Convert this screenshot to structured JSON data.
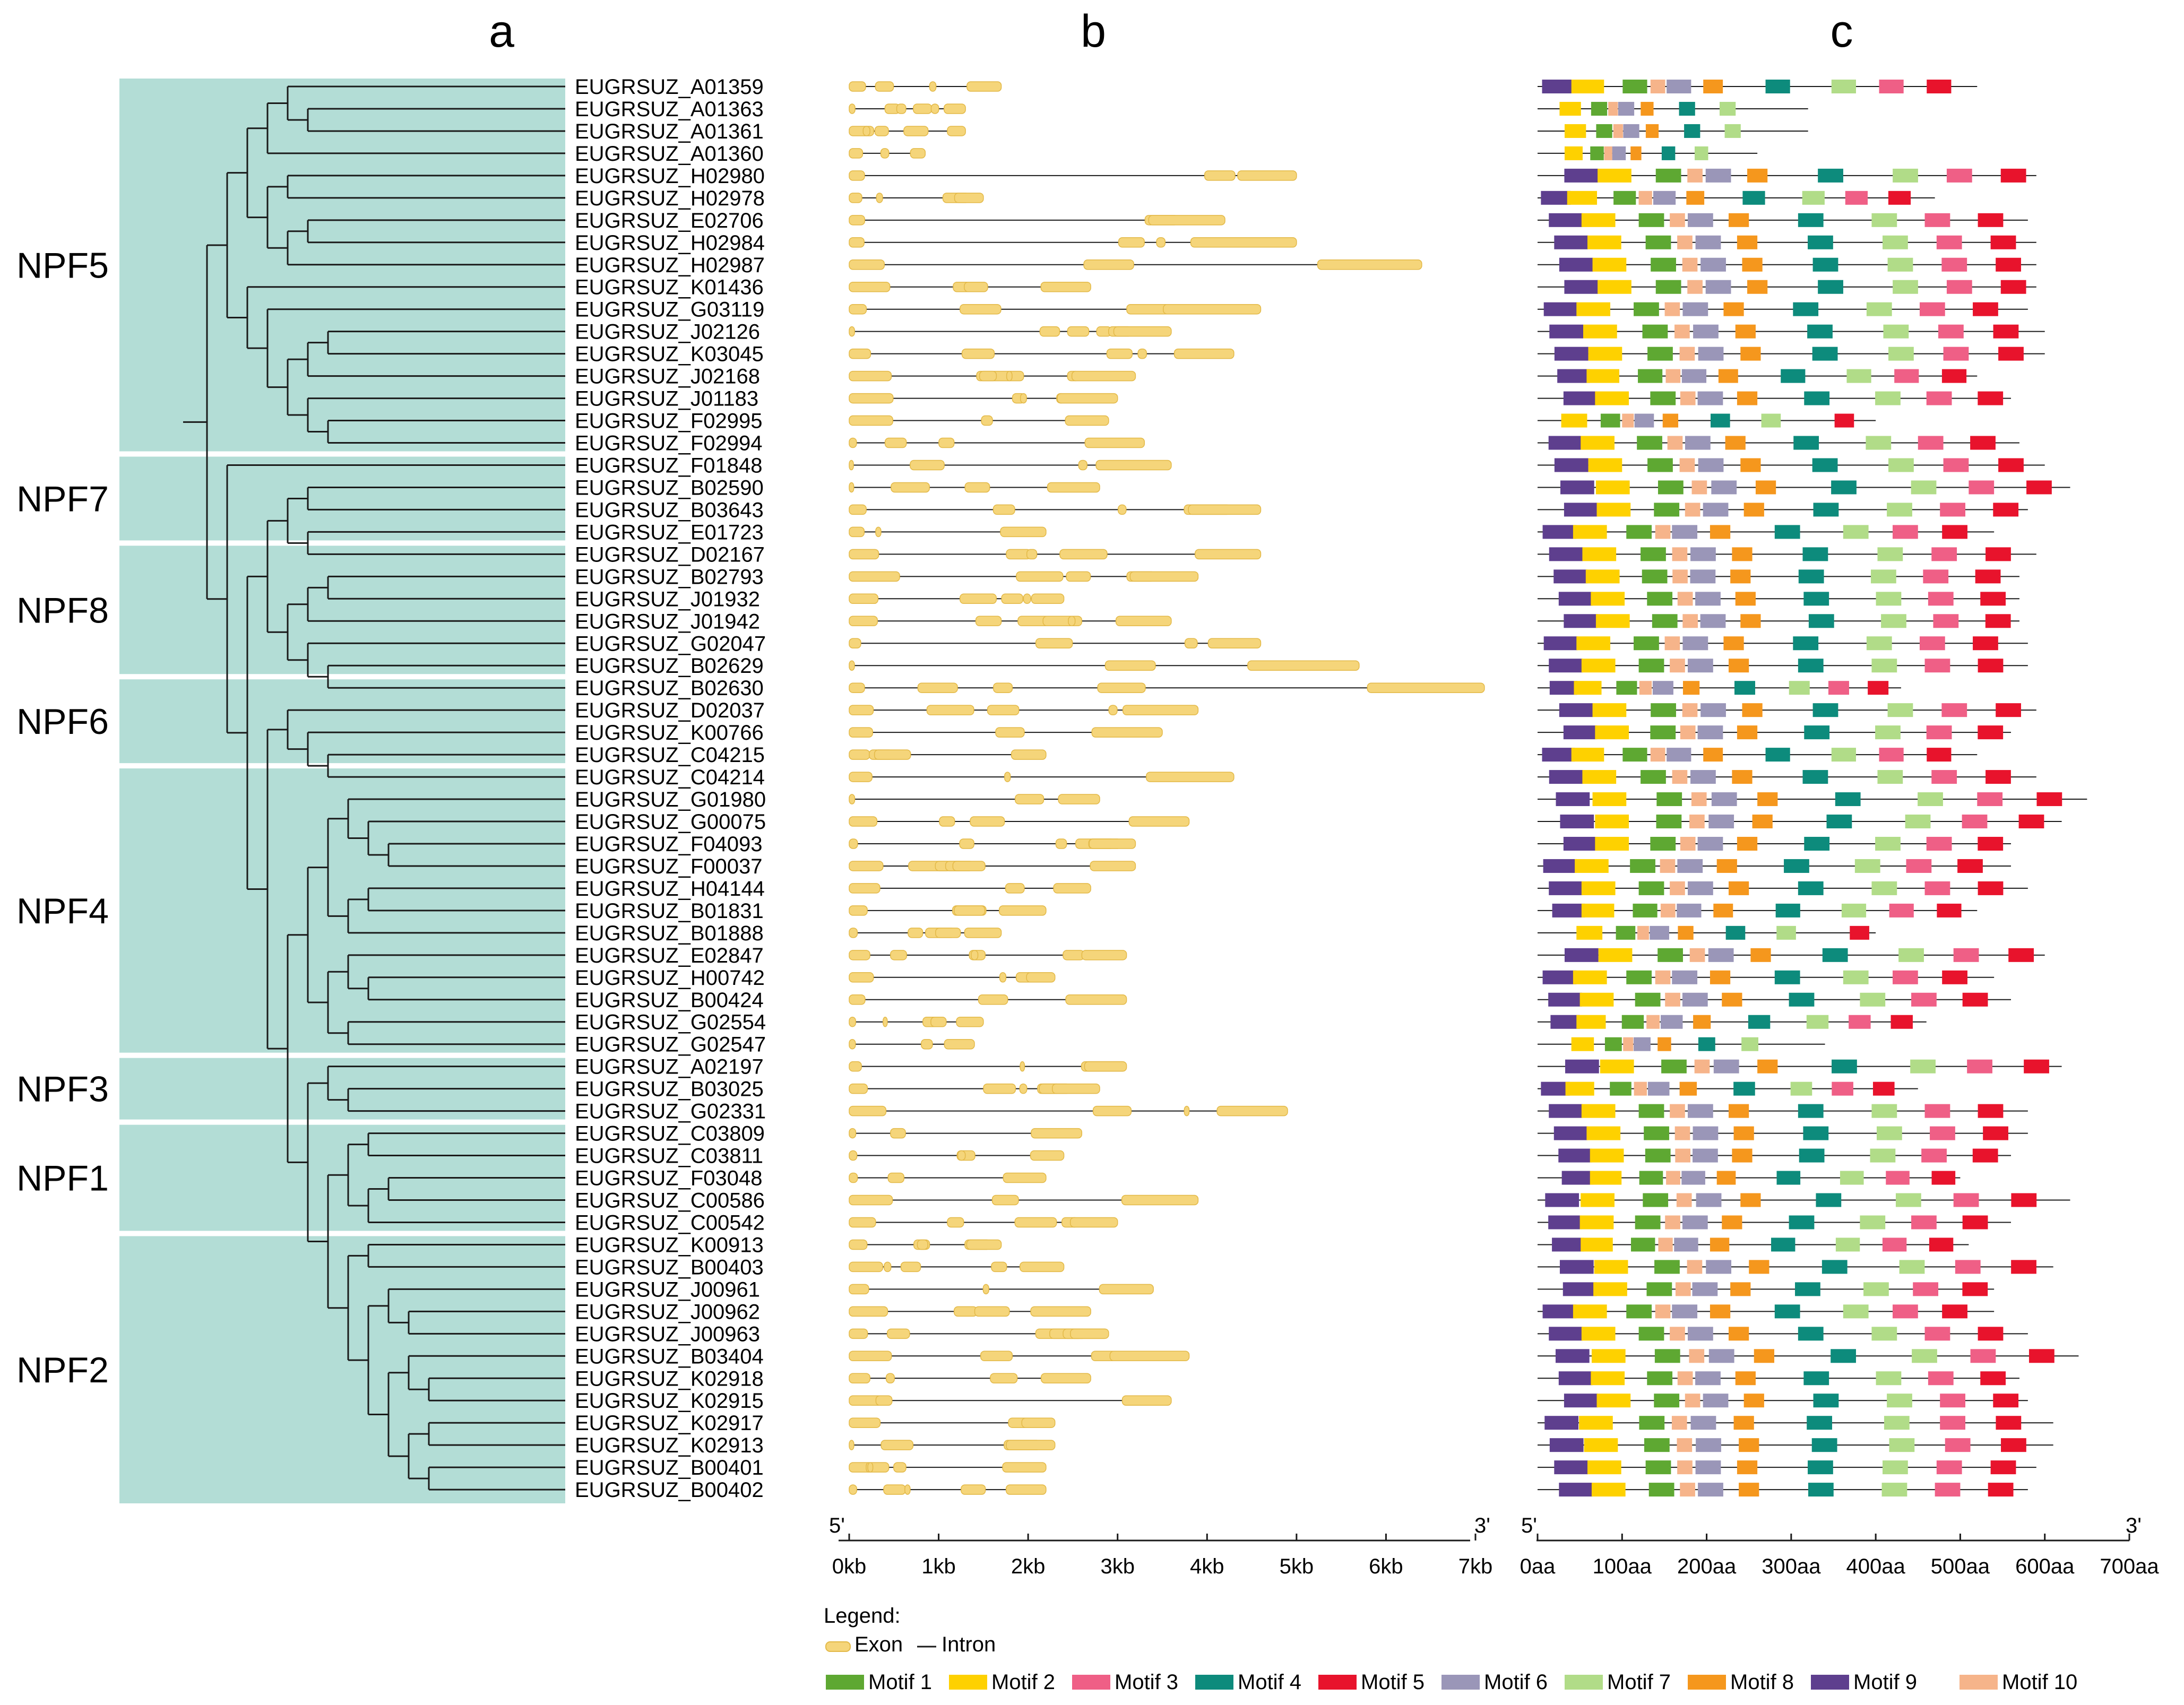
{
  "panels": {
    "a": "a",
    "b": "b",
    "c": "c"
  },
  "subfamilies": [
    {
      "name": "NPF5",
      "first": 0,
      "last": 16
    },
    {
      "name": "NPF7",
      "first": 17,
      "last": 20
    },
    {
      "name": "NPF8",
      "first": 21,
      "last": 26
    },
    {
      "name": "NPF6",
      "first": 27,
      "last": 30
    },
    {
      "name": "NPF4",
      "first": 31,
      "last": 43
    },
    {
      "name": "NPF3",
      "first": 44,
      "last": 46
    },
    {
      "name": "NPF1",
      "first": 47,
      "last": 51
    },
    {
      "name": "NPF2",
      "first": 52,
      "last": 63
    }
  ],
  "genes": [
    "EUGRSUZ_A01359",
    "EUGRSUZ_A01363",
    "EUGRSUZ_A01361",
    "EUGRSUZ_A01360",
    "EUGRSUZ_H02980",
    "EUGRSUZ_H02978",
    "EUGRSUZ_E02706",
    "EUGRSUZ_H02984",
    "EUGRSUZ_H02987",
    "EUGRSUZ_K01436",
    "EUGRSUZ_G03119",
    "EUGRSUZ_J02126",
    "EUGRSUZ_K03045",
    "EUGRSUZ_J02168",
    "EUGRSUZ_J01183",
    "EUGRSUZ_F02995",
    "EUGRSUZ_F02994",
    "EUGRSUZ_F01848",
    "EUGRSUZ_B02590",
    "EUGRSUZ_B03643",
    "EUGRSUZ_E01723",
    "EUGRSUZ_D02167",
    "EUGRSUZ_B02793",
    "EUGRSUZ_J01932",
    "EUGRSUZ_J01942",
    "EUGRSUZ_G02047",
    "EUGRSUZ_B02629",
    "EUGRSUZ_B02630",
    "EUGRSUZ_D02037",
    "EUGRSUZ_K00766",
    "EUGRSUZ_C04215",
    "EUGRSUZ_C04214",
    "EUGRSUZ_G01980",
    "EUGRSUZ_G00075",
    "EUGRSUZ_F04093",
    "EUGRSUZ_F00037",
    "EUGRSUZ_H04144",
    "EUGRSUZ_B01831",
    "EUGRSUZ_B01888",
    "EUGRSUZ_E02847",
    "EUGRSUZ_H00742",
    "EUGRSUZ_B00424",
    "EUGRSUZ_G02554",
    "EUGRSUZ_G02547",
    "EUGRSUZ_A02197",
    "EUGRSUZ_B03025",
    "EUGRSUZ_G02331",
    "EUGRSUZ_C03809",
    "EUGRSUZ_C03811",
    "EUGRSUZ_F03048",
    "EUGRSUZ_C00586",
    "EUGRSUZ_C00542",
    "EUGRSUZ_K00913",
    "EUGRSUZ_B00403",
    "EUGRSUZ_J00961",
    "EUGRSUZ_J00962",
    "EUGRSUZ_J00963",
    "EUGRSUZ_B03404",
    "EUGRSUZ_K02918",
    "EUGRSUZ_K02915",
    "EUGRSUZ_K02917",
    "EUGRSUZ_K02913",
    "EUGRSUZ_B00401",
    "EUGRSUZ_B00402"
  ],
  "gene_lengths_kb": [
    1.7,
    1.3,
    1.3,
    0.85,
    5.0,
    1.5,
    4.2,
    5.0,
    6.4,
    2.7,
    4.6,
    3.6,
    4.3,
    3.2,
    3.0,
    2.9,
    3.3,
    3.6,
    2.8,
    4.6,
    2.2,
    4.6,
    3.9,
    2.4,
    3.6,
    4.6,
    5.7,
    7.1,
    3.9,
    3.5,
    2.2,
    4.3,
    2.8,
    3.8,
    3.2,
    3.2,
    2.7,
    2.2,
    1.7,
    3.1,
    2.3,
    3.1,
    1.5,
    1.4,
    3.1,
    2.8,
    4.9,
    2.6,
    2.4,
    2.2,
    3.9,
    3.0,
    1.7,
    2.4,
    3.4,
    2.7,
    2.9,
    3.8,
    2.7,
    3.6,
    2.3,
    2.3,
    2.2,
    2.2
  ],
  "protein_lengths_aa": [
    520,
    320,
    320,
    260,
    590,
    470,
    580,
    590,
    590,
    590,
    580,
    600,
    600,
    520,
    560,
    400,
    570,
    600,
    630,
    580,
    540,
    590,
    570,
    570,
    570,
    580,
    580,
    430,
    590,
    560,
    520,
    590,
    650,
    620,
    560,
    560,
    580,
    520,
    400,
    600,
    540,
    560,
    460,
    340,
    620,
    450,
    580,
    580,
    560,
    500,
    630,
    560,
    510,
    610,
    540,
    540,
    580,
    640,
    570,
    580,
    610,
    610,
    590,
    580
  ],
  "scale_b": {
    "start": "5'",
    "end": "3'",
    "ticks": [
      "0kb",
      "1kb",
      "2kb",
      "3kb",
      "4kb",
      "5kb",
      "6kb",
      "7kb"
    ],
    "max_kb": 7
  },
  "scale_c": {
    "start": "5'",
    "end": "3'",
    "ticks": [
      "0aa",
      "100aa",
      "200aa",
      "300aa",
      "400aa",
      "500aa",
      "600aa",
      "700aa"
    ],
    "max_aa": 700
  },
  "legend": {
    "title": "Legend:",
    "exon": "Exon",
    "intron": "Intron",
    "motifs": [
      {
        "name": "Motif 1",
        "color": "#5ea832"
      },
      {
        "name": "Motif 2",
        "color": "#fed100"
      },
      {
        "name": "Motif 3",
        "color": "#ef5f86"
      },
      {
        "name": "Motif 4",
        "color": "#0d8b7c"
      },
      {
        "name": "Motif 5",
        "color": "#e8132c"
      },
      {
        "name": "Motif 6",
        "color": "#9a96b8"
      },
      {
        "name": "Motif 7",
        "color": "#b1dc88"
      },
      {
        "name": "Motif 8",
        "color": "#f5971d"
      },
      {
        "name": "Motif 9",
        "color": "#5e3f8e"
      },
      {
        "name": "Motif 10",
        "color": "#f6b48a"
      }
    ]
  },
  "colors": {
    "clade_bg": "#b3ddd6",
    "exon": "#f5d57a",
    "exon_edge": "#e3b948",
    "line": "#1a1a1a"
  }
}
